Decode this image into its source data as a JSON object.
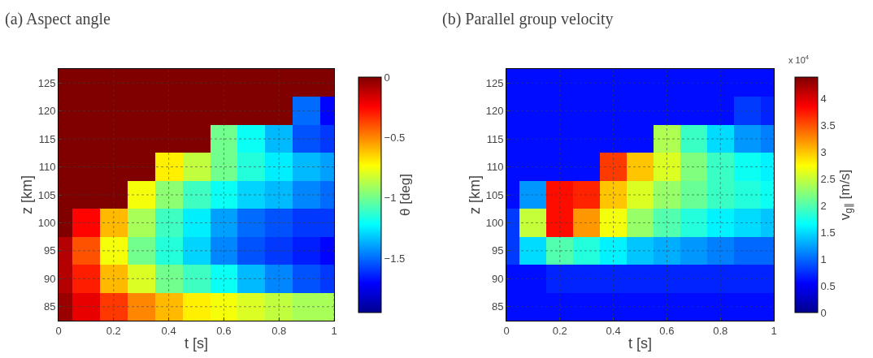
{
  "chart_data": [
    {
      "type": "heatmap",
      "title": "(a) Aspect angle",
      "xlabel": "t [s]",
      "ylabel": "z [km]",
      "clabel": "θ [deg]",
      "x": [
        0,
        0.1,
        0.2,
        0.3,
        0.4,
        0.5,
        0.6,
        0.7,
        0.8,
        0.9,
        1
      ],
      "y_categories": [
        "125",
        "120",
        "115",
        "110",
        "105",
        "100",
        "95",
        "90",
        "85"
      ],
      "cells": [
        [
          0,
          0,
          0,
          0,
          0,
          0,
          0,
          0,
          0,
          0,
          0
        ],
        [
          0,
          0,
          0,
          0,
          0,
          0,
          0,
          0,
          0,
          -1.5,
          -1.7
        ],
        [
          0,
          0,
          0,
          0,
          0,
          0,
          -1.0,
          -1.2,
          -1.35,
          -1.55,
          -1.6
        ],
        [
          0,
          0,
          0,
          0,
          -0.7,
          -0.85,
          -1.0,
          -1.15,
          -1.25,
          -1.35,
          -1.4
        ],
        [
          0,
          0,
          0,
          -0.75,
          -0.95,
          -1.1,
          -1.2,
          -1.3,
          -1.35,
          -1.45,
          -1.5
        ],
        [
          0,
          -0.25,
          -0.6,
          -0.9,
          -1.1,
          -1.25,
          -1.4,
          -1.5,
          -1.55,
          -1.6,
          -1.6
        ],
        [
          -0.1,
          -0.4,
          -0.75,
          -1.0,
          -1.15,
          -1.3,
          -1.45,
          -1.55,
          -1.6,
          -1.65,
          -1.7
        ],
        [
          -0.1,
          -0.3,
          -0.6,
          -0.8,
          -1.0,
          -1.1,
          -1.2,
          -1.35,
          -1.45,
          -1.55,
          -1.6
        ],
        [
          -0.05,
          -0.2,
          -0.35,
          -0.5,
          -0.6,
          -0.7,
          -0.75,
          -0.8,
          -0.85,
          -0.9,
          -0.9
        ]
      ],
      "xlim": [
        0,
        1
      ],
      "xticks": [
        0,
        0.2,
        0.4,
        0.6,
        0.8,
        1
      ],
      "clim": [
        -1.95,
        0
      ],
      "cticks": [
        0,
        {
          "value": -0.5,
          "label": "−0.5"
        },
        {
          "value": -1,
          "label": "−1"
        },
        {
          "value": -1.5,
          "label": "−1.5"
        }
      ],
      "grid": true
    },
    {
      "type": "heatmap",
      "title": "(b) Parallel group velocity",
      "xlabel": "t [s]",
      "ylabel": "z [km]",
      "clabel": "v$_{g∥}$ [m/s]",
      "annotations": [
        "x 10$^{4}$"
      ],
      "x": [
        0,
        0.1,
        0.2,
        0.3,
        0.4,
        0.5,
        0.6,
        0.7,
        0.8,
        0.9,
        1
      ],
      "y_categories": [
        "125",
        "120",
        "115",
        "110",
        "105",
        "100",
        "95",
        "90",
        "85"
      ],
      "cells": [
        [
          0.6,
          0.6,
          0.6,
          0.6,
          0.6,
          0.6,
          0.6,
          0.6,
          0.6,
          0.6,
          0.6
        ],
        [
          0.6,
          0.6,
          0.6,
          0.6,
          0.6,
          0.6,
          0.6,
          0.6,
          0.6,
          0.8,
          0.7
        ],
        [
          0.6,
          0.6,
          0.6,
          0.6,
          0.6,
          0.6,
          2.4,
          1.9,
          1.5,
          1.2,
          1.1
        ],
        [
          0.6,
          0.6,
          0.6,
          0.6,
          3.6,
          3.0,
          2.6,
          2.2,
          1.9,
          1.7,
          1.6
        ],
        [
          0.6,
          1.2,
          3.8,
          3.7,
          3.0,
          2.6,
          2.3,
          2.1,
          1.9,
          1.8,
          1.7
        ],
        [
          0.8,
          2.5,
          3.8,
          3.2,
          2.7,
          2.3,
          2.0,
          1.8,
          1.6,
          1.5,
          1.4
        ],
        [
          0.8,
          1.5,
          2.0,
          1.8,
          1.6,
          1.4,
          1.3,
          1.2,
          1.1,
          1.0,
          1.0
        ],
        [
          0.6,
          0.6,
          0.7,
          0.7,
          0.7,
          0.7,
          0.7,
          0.7,
          0.7,
          0.7,
          0.7
        ],
        [
          0.6,
          0.6,
          0.6,
          0.6,
          0.6,
          0.6,
          0.6,
          0.6,
          0.6,
          0.6,
          0.6
        ]
      ],
      "xlim": [
        0,
        1
      ],
      "xticks": [
        0,
        0.2,
        0.4,
        0.6,
        0.8,
        1
      ],
      "clim": [
        0,
        4.4
      ],
      "cticks": [
        0,
        0.5,
        1,
        1.5,
        2,
        2.5,
        3,
        3.5,
        4
      ],
      "grid": true
    }
  ]
}
